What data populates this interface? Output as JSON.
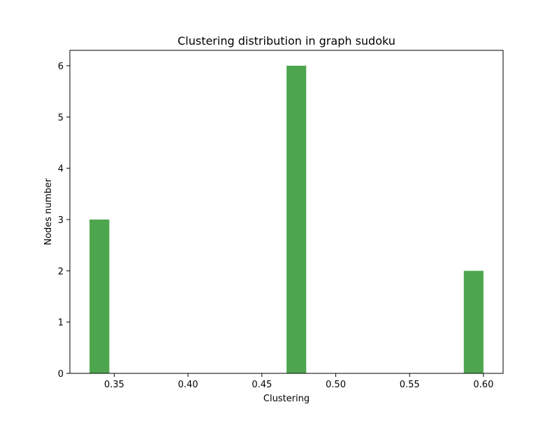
{
  "chart_data": {
    "type": "bar",
    "title": "Clustering distribution in graph sudoku",
    "xlabel": "Clustering",
    "ylabel": "Nodes number",
    "bins": [
      {
        "x_start": 0.3333,
        "x_end": 0.3467,
        "count": 3
      },
      {
        "x_start": 0.4667,
        "x_end": 0.48,
        "count": 6
      },
      {
        "x_start": 0.5867,
        "x_end": 0.6,
        "count": 2
      }
    ],
    "xlim": [
      0.32,
      0.6133
    ],
    "ylim": [
      0,
      6.3
    ],
    "xticks": [
      0.35,
      0.4,
      0.45,
      0.5,
      0.55,
      0.6
    ],
    "xtick_labels": [
      "0.35",
      "0.40",
      "0.45",
      "0.50",
      "0.55",
      "0.60"
    ],
    "yticks": [
      0,
      1,
      2,
      3,
      4,
      5,
      6
    ],
    "ytick_labels": [
      "0",
      "1",
      "2",
      "3",
      "4",
      "5",
      "6"
    ],
    "bar_color": "#4da64d",
    "grid": false,
    "legend": false
  }
}
